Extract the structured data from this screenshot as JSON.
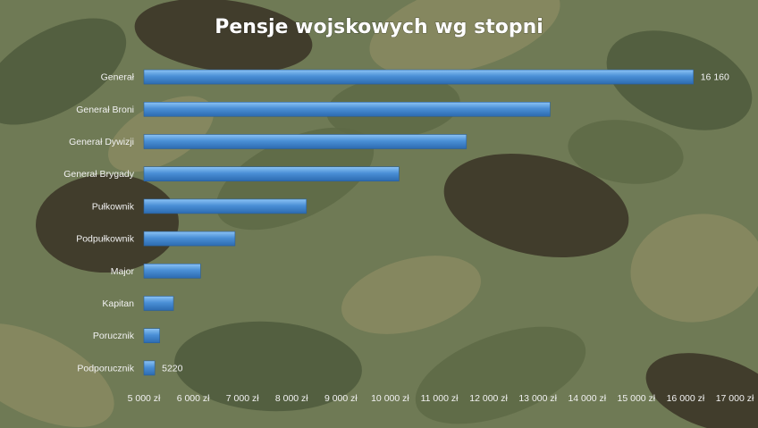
{
  "chart_data": {
    "type": "bar",
    "orientation": "horizontal",
    "title": "Pensje wojskowych wg stopni",
    "categories": [
      "Generał",
      "Generał Broni",
      "Generał Dywizji",
      "Generał Brygady",
      "Pułkownik",
      "Podpułkownik",
      "Major",
      "Kapitan",
      "Porucznik",
      "Podporucznik"
    ],
    "values": [
      16160,
      13250,
      11550,
      10180,
      8300,
      6850,
      6150,
      5600,
      5320,
      5220
    ],
    "data_labels": [
      {
        "category": "Generał",
        "text": "16 160"
      },
      {
        "category": "Podporucznik",
        "text": "5220"
      }
    ],
    "xlim": [
      5000,
      17000
    ],
    "xticks": [
      "5 000 zł",
      "6 000 zł",
      "7 000 zł",
      "8 000 zł",
      "9 000 zł",
      "10 000 zł",
      "11 000 zł",
      "12 000 zł",
      "13 000 zł",
      "14 000 zł",
      "15 000 zł",
      "16 000 zł",
      "17 000 zł"
    ],
    "grid": false,
    "bar_color": "#4a8fd6",
    "text_color": "#f2f2f2"
  },
  "background": {
    "pattern": "woodland camouflage",
    "colors": [
      "#6f7a55",
      "#4f5a3d",
      "#3a3326",
      "#8a8a62",
      "#5e6a46"
    ]
  }
}
